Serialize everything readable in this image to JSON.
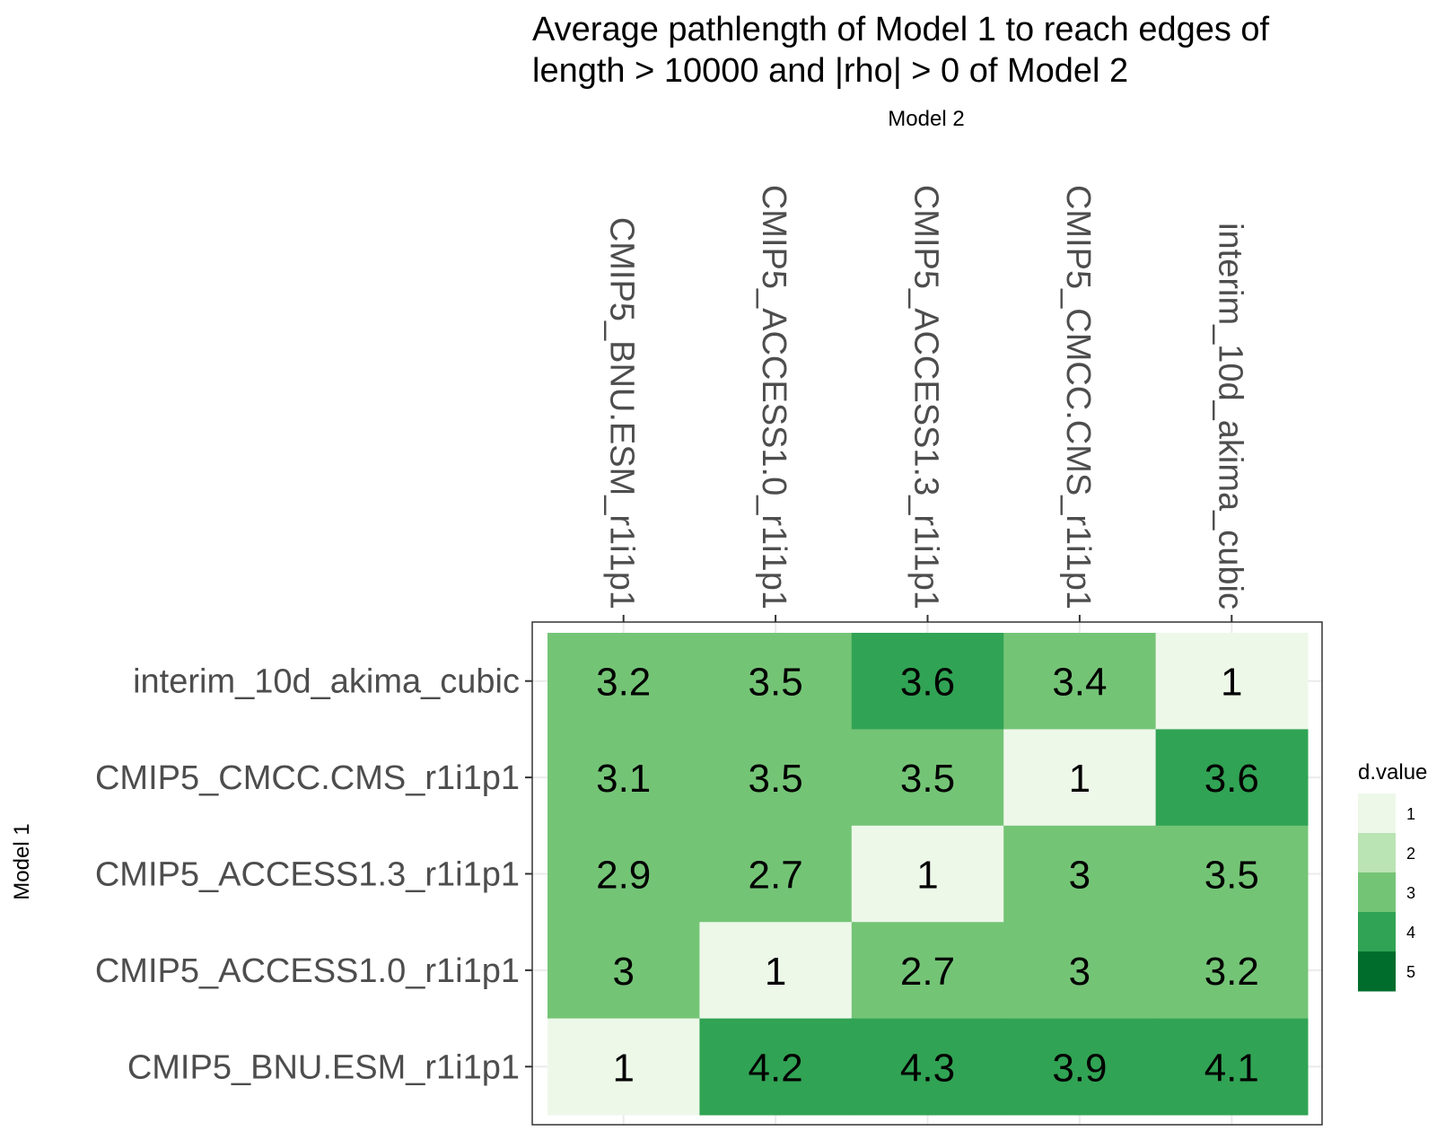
{
  "chart_data": {
    "type": "heatmap",
    "title_lines": [
      "Average pathlength of Model 1 to reach edges of",
      "length > 10000 and |rho| > 0 of Model 2"
    ],
    "xlabel": "Model 2",
    "ylabel": "Model 1",
    "x_categories": [
      "CMIP5_BNU.ESM_r1i1p1",
      "CMIP5_ACCESS1.0_r1i1p1",
      "CMIP5_ACCESS1.3_r1i1p1",
      "CMIP5_CMCC.CMS_r1i1p1",
      "interim_10d_akima_cubic"
    ],
    "y_categories": [
      "interim_10d_akima_cubic",
      "CMIP5_CMCC.CMS_r1i1p1",
      "CMIP5_ACCESS1.3_r1i1p1",
      "CMIP5_ACCESS1.0_r1i1p1",
      "CMIP5_BNU.ESM_r1i1p1"
    ],
    "values": [
      [
        3.2,
        3.5,
        3.6,
        3.4,
        1
      ],
      [
        3.1,
        3.5,
        3.5,
        1,
        3.6
      ],
      [
        2.9,
        2.7,
        1,
        3,
        3.5
      ],
      [
        3,
        1,
        2.7,
        3,
        3.2
      ],
      [
        1,
        4.2,
        4.3,
        3.9,
        4.1
      ]
    ],
    "legend": {
      "title": "d.value",
      "position": "right",
      "breaks": [
        1,
        2,
        3,
        4,
        5
      ],
      "colors": [
        "#edf8e9",
        "#bae4b3",
        "#74c476",
        "#31a354",
        "#006d2c"
      ]
    },
    "x_tick_labels_position": "top",
    "grid": true
  }
}
